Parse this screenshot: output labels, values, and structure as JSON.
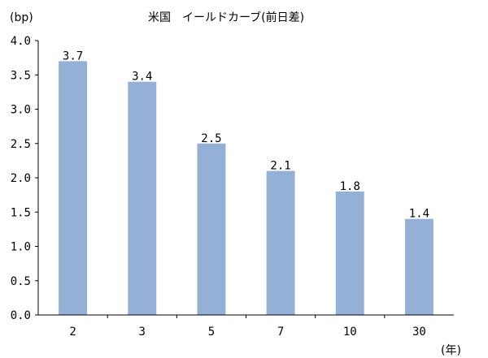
{
  "chart_data": {
    "type": "bar",
    "title": "米国　イールドカーブ(前日差)",
    "ylabel": "(bp)",
    "xlabel": "(年)",
    "categories": [
      "2",
      "3",
      "5",
      "7",
      "10",
      "30"
    ],
    "values": [
      3.7,
      3.4,
      2.5,
      2.1,
      1.8,
      1.4
    ],
    "data_labels": [
      "3.7",
      "3.4",
      "2.5",
      "2.1",
      "1.8",
      "1.4"
    ],
    "ylim": [
      0,
      4
    ],
    "yticks": [
      "0.0",
      "0.5",
      "1.0",
      "1.5",
      "2.0",
      "2.5",
      "3.0",
      "3.5",
      "4.0"
    ],
    "grid": false,
    "bar_color": "#94b0d6"
  }
}
